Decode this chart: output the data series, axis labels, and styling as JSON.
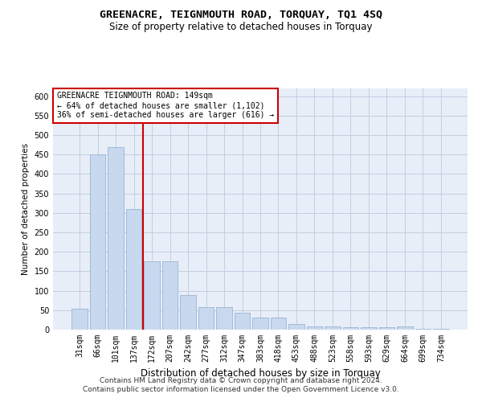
{
  "title": "GREENACRE, TEIGNMOUTH ROAD, TORQUAY, TQ1 4SQ",
  "subtitle": "Size of property relative to detached houses in Torquay",
  "xlabel": "Distribution of detached houses by size in Torquay",
  "ylabel": "Number of detached properties",
  "categories": [
    "31sqm",
    "66sqm",
    "101sqm",
    "137sqm",
    "172sqm",
    "207sqm",
    "242sqm",
    "277sqm",
    "312sqm",
    "347sqm",
    "383sqm",
    "418sqm",
    "453sqm",
    "488sqm",
    "523sqm",
    "558sqm",
    "593sqm",
    "629sqm",
    "664sqm",
    "699sqm",
    "734sqm"
  ],
  "values": [
    53,
    450,
    470,
    310,
    175,
    175,
    88,
    58,
    58,
    43,
    30,
    30,
    14,
    9,
    8,
    7,
    6,
    6,
    8,
    3,
    3
  ],
  "bar_color": "#c8d8ee",
  "bar_edge_color": "#9ab4d4",
  "vline_x_index": 3.5,
  "vline_color": "#cc0000",
  "annotation_title": "GREENACRE TEIGNMOUTH ROAD: 149sqm",
  "annotation_line1": "← 64% of detached houses are smaller (1,102)",
  "annotation_line2": "36% of semi-detached houses are larger (616) →",
  "annotation_box_color": "#ffffff",
  "annotation_box_edge": "#cc0000",
  "ylim": [
    0,
    620
  ],
  "yticks": [
    0,
    50,
    100,
    150,
    200,
    250,
    300,
    350,
    400,
    450,
    500,
    550,
    600
  ],
  "grid_color": "#c0cfe0",
  "bg_color": "#e8eef8",
  "footer1": "Contains HM Land Registry data © Crown copyright and database right 2024.",
  "footer2": "Contains public sector information licensed under the Open Government Licence v3.0.",
  "title_fontsize": 9.5,
  "subtitle_fontsize": 8.5,
  "xlabel_fontsize": 8.5,
  "ylabel_fontsize": 7.5,
  "tick_fontsize": 7,
  "footer_fontsize": 6.5,
  "annotation_fontsize": 7
}
